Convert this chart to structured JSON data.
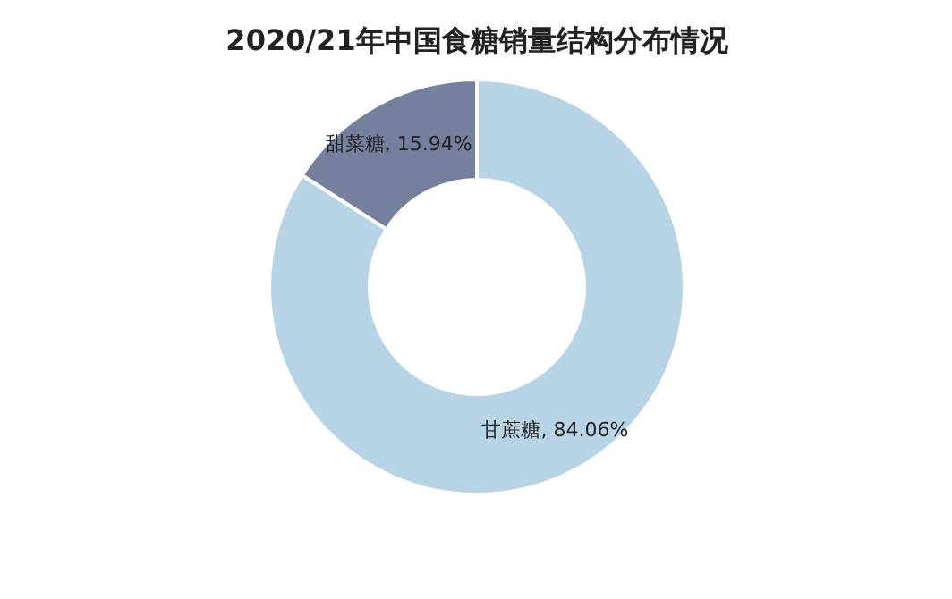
{
  "chart_data": {
    "type": "donut",
    "title": "2020/21年中国食糖销量结构分布情况",
    "categories": [
      "甘蔗糖",
      "甜菜糖"
    ],
    "values": [
      84.06,
      15.94
    ],
    "colors": [
      "#b7d3e6",
      "#75809f"
    ],
    "value_labels": [
      "84.06%",
      "15.94%"
    ]
  }
}
